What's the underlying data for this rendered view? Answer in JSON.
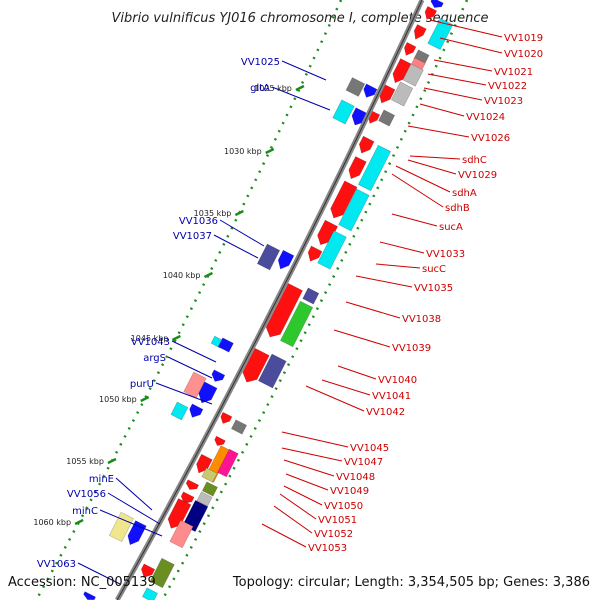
{
  "title": "Vibrio vulnificus YJ016 chromosome I, complete sequence",
  "footer": {
    "accession": "Accession: NC_005139",
    "topology": "Topology: circular; Length: 3,354,505 bp; Genes: 3,386"
  },
  "colors": {
    "right_label": "#cc0000",
    "left_label": "#0000aa",
    "backbone": "#888888",
    "ruler": "#1a8c1a"
  },
  "ticks": [
    "1025 kbp",
    "1030 kbp",
    "1035 kbp",
    "1040 kbp",
    "1045 kbp",
    "1050 kbp",
    "1055 kbp",
    "1060 kbp"
  ],
  "right_genes": [
    {
      "name": "VV1019"
    },
    {
      "name": "VV1020"
    },
    {
      "name": "VV1021"
    },
    {
      "name": "VV1022"
    },
    {
      "name": "VV1023"
    },
    {
      "name": "VV1024"
    },
    {
      "name": "VV1026"
    },
    {
      "name": "sdhC"
    },
    {
      "name": "VV1029"
    },
    {
      "name": "sdhA"
    },
    {
      "name": "sdhB"
    },
    {
      "name": "sucA"
    },
    {
      "name": "VV1033"
    },
    {
      "name": "sucC"
    },
    {
      "name": "VV1035"
    },
    {
      "name": "VV1038"
    },
    {
      "name": "VV1039"
    },
    {
      "name": "VV1040"
    },
    {
      "name": "VV1041"
    },
    {
      "name": "VV1042"
    },
    {
      "name": "VV1045"
    },
    {
      "name": "VV1047"
    },
    {
      "name": "VV1048"
    },
    {
      "name": "VV1049"
    },
    {
      "name": "VV1050"
    },
    {
      "name": "VV1051"
    },
    {
      "name": "VV1052"
    },
    {
      "name": "VV1053"
    }
  ],
  "left_genes": [
    {
      "name": "VV1025"
    },
    {
      "name": "gltA"
    },
    {
      "name": "VV1036"
    },
    {
      "name": "VV1037"
    },
    {
      "name": "VV1043"
    },
    {
      "name": "argS"
    },
    {
      "name": "purU"
    },
    {
      "name": "minE"
    },
    {
      "name": "VV1056"
    },
    {
      "name": "minC"
    },
    {
      "name": "VV1063"
    }
  ]
}
